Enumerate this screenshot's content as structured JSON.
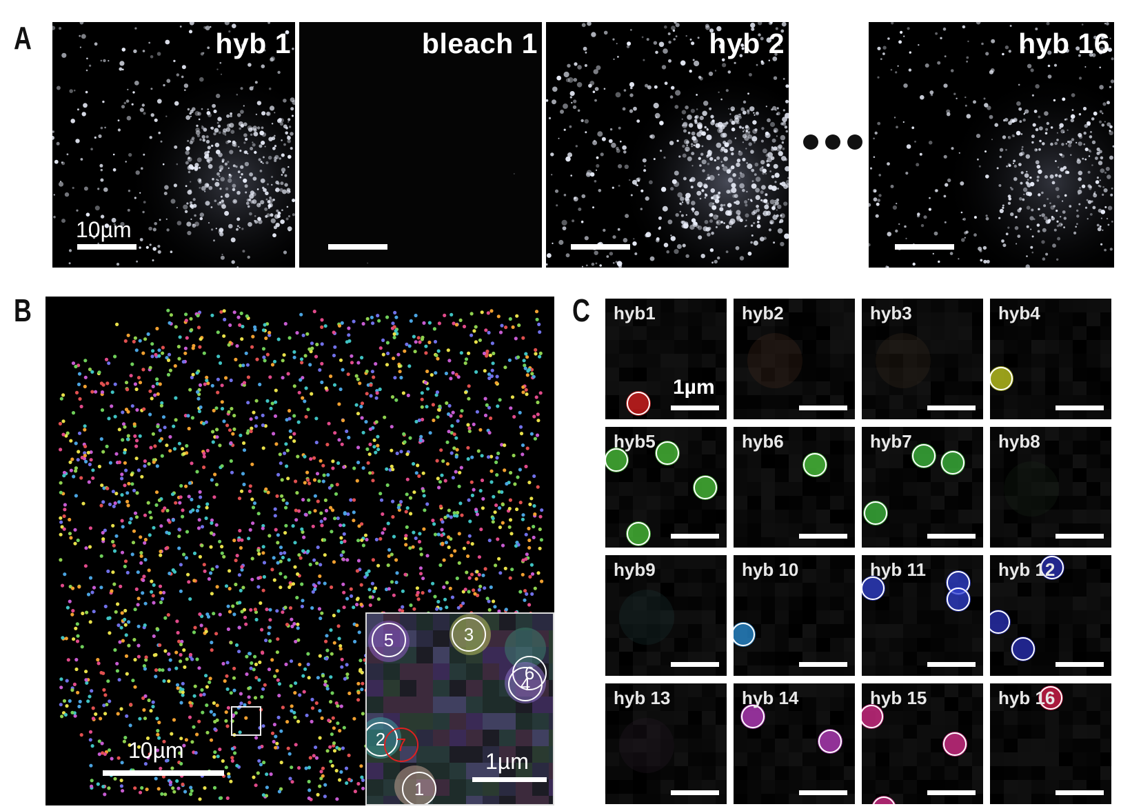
{
  "panel_labels": {
    "a": "A",
    "b": "B",
    "c": "C"
  },
  "panel_a": {
    "frames": [
      {
        "title": "hyb 1",
        "scale_label": "10µm",
        "brightness": 1.0
      },
      {
        "title": "bleach 1",
        "scale_label": "",
        "brightness": 0.0
      },
      {
        "title": "hyb 2",
        "scale_label": "",
        "brightness": 1.3
      },
      {
        "title": "hyb 16",
        "scale_label": "",
        "brightness": 0.9
      }
    ]
  },
  "panel_b": {
    "scale_label": "10µm",
    "inset_scale_label": "1µm",
    "inset_spots": [
      "5",
      "3",
      "6",
      "4",
      "2",
      "7",
      "1"
    ],
    "dot_colors": [
      "#8fd14f",
      "#6fcf5a",
      "#e04a8a",
      "#c65bd1",
      "#4aa3e0",
      "#3fc2c2",
      "#f0a030",
      "#e8e04a",
      "#7070e8",
      "#e05050"
    ]
  },
  "panel_c": {
    "scale_label": "1µm",
    "tiles": [
      {
        "title": "hyb1",
        "color": "#e02020"
      },
      {
        "title": "hyb2",
        "color": "#553322"
      },
      {
        "title": "hyb3",
        "color": "#443322"
      },
      {
        "title": "hyb4",
        "color": "#c8d020"
      },
      {
        "title": "hyb5",
        "color": "#4ec83c"
      },
      {
        "title": "hyb6",
        "color": "#50d040"
      },
      {
        "title": "hyb7",
        "color": "#40c040"
      },
      {
        "title": "hyb8",
        "color": "#1a2a1a"
      },
      {
        "title": "hyb9",
        "color": "#1a3a3a"
      },
      {
        "title": "hyb 10",
        "color": "#2a90d8"
      },
      {
        "title": "hyb 11",
        "color": "#3040d0"
      },
      {
        "title": "hyb 12",
        "color": "#2a30b8"
      },
      {
        "title": "hyb 13",
        "color": "#2a1a2a"
      },
      {
        "title": "hyb 14",
        "color": "#c040c8"
      },
      {
        "title": "hyb 15",
        "color": "#e03090"
      },
      {
        "title": "hyb 16",
        "color": "#e02050"
      }
    ]
  }
}
